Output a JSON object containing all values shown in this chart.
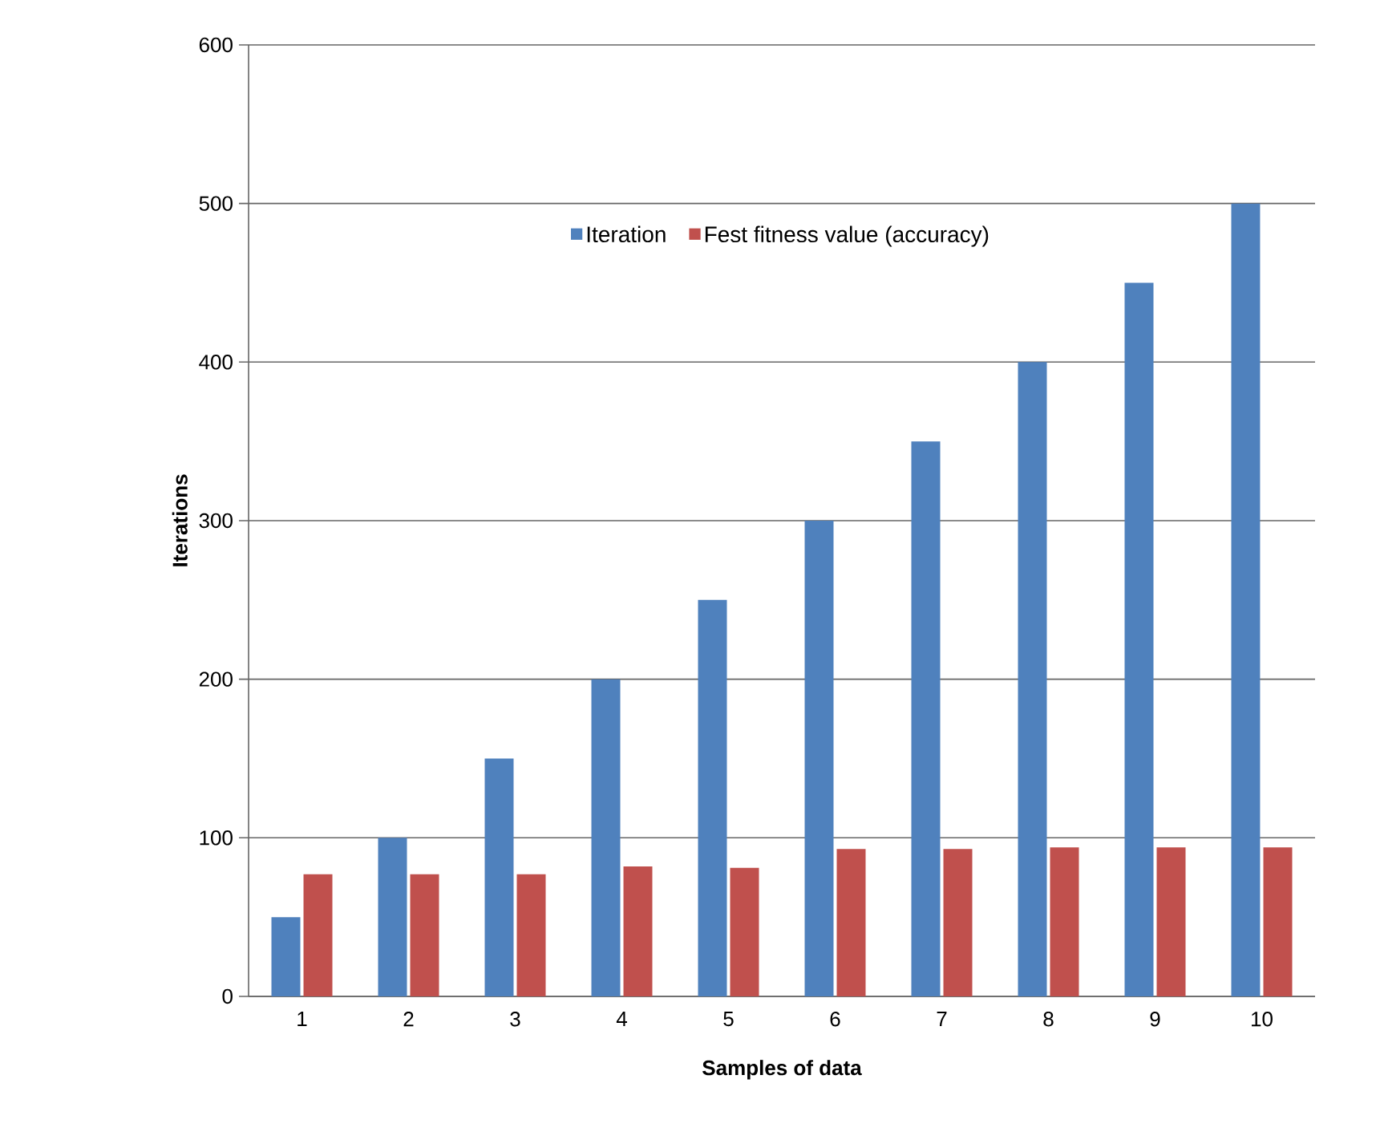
{
  "chart_data": {
    "type": "bar",
    "xlabel": "Samples of data",
    "ylabel": "Iterations",
    "categories": [
      "1",
      "2",
      "3",
      "4",
      "5",
      "6",
      "7",
      "8",
      "9",
      "10"
    ],
    "series": [
      {
        "name": "Iteration",
        "color": "#4f81bd",
        "values": [
          50,
          100,
          150,
          200,
          250,
          300,
          350,
          400,
          450,
          500
        ]
      },
      {
        "name": "Fest fitness value (accuracy)",
        "color": "#c0504d",
        "values": [
          77,
          77,
          77,
          82,
          81,
          93,
          93,
          94,
          94,
          94
        ]
      }
    ],
    "ylim": [
      0,
      600
    ],
    "yticks": [
      0,
      100,
      200,
      300,
      400,
      500,
      600
    ],
    "grid": "y",
    "legend": "top"
  }
}
